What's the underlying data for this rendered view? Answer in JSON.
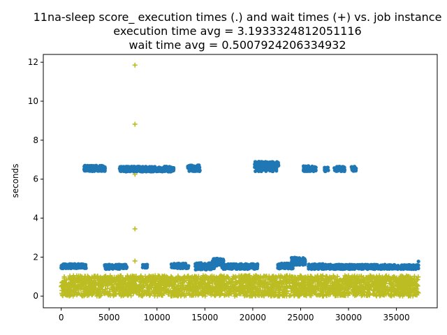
{
  "chart_data": {
    "type": "scatter",
    "title_lines": [
      "11na-sleep score_ execution times (.) and wait times (+) vs. job instance",
      "execution time avg = 3.1933324812051116",
      "wait time avg = 0.5007924206334932"
    ],
    "xlabel": "",
    "ylabel": "seconds",
    "xlim": [
      -1870,
      39260
    ],
    "ylim": [
      -0.6,
      12.4
    ],
    "x_ticks": [
      0,
      5000,
      10000,
      15000,
      20000,
      25000,
      30000,
      35000
    ],
    "y_ticks": [
      0,
      2,
      4,
      6,
      8,
      10,
      12
    ],
    "grid": false,
    "legend": "none",
    "colors": {
      "execution": "#1f77b4",
      "wait": "#bcbd22"
    },
    "series": [
      {
        "marker": "dot",
        "color": "#1f77b4",
        "clusters": [
          {
            "x_range": [
              0,
              2600
            ],
            "y_range": [
              1.42,
              1.65
            ]
          },
          {
            "x_range": [
              2400,
              4600
            ],
            "y_range": [
              6.4,
              6.7
            ]
          },
          {
            "x_range": [
              4500,
              6100
            ],
            "y_range": [
              1.38,
              1.62
            ]
          },
          {
            "x_range": [
              5900,
              6900
            ],
            "y_range": [
              1.42,
              1.62
            ]
          },
          {
            "x_range": [
              6100,
              11800
            ],
            "y_range": [
              6.38,
              6.65
            ]
          },
          {
            "x_range": [
              8500,
              9000
            ],
            "y_range": [
              1.45,
              1.62
            ]
          },
          {
            "x_range": [
              11500,
              13300
            ],
            "y_range": [
              1.42,
              1.68
            ]
          },
          {
            "x_range": [
              13200,
              14500
            ],
            "y_range": [
              6.4,
              6.72
            ]
          },
          {
            "x_range": [
              14000,
              16000
            ],
            "y_range": [
              1.35,
              1.7
            ]
          },
          {
            "x_range": [
              15800,
              17000
            ],
            "y_range": [
              1.55,
              1.95
            ]
          },
          {
            "x_range": [
              16800,
              20500
            ],
            "y_range": [
              1.38,
              1.65
            ]
          },
          {
            "x_range": [
              20200,
              22700
            ],
            "y_range": [
              6.4,
              6.9
            ]
          },
          {
            "x_range": [
              22600,
              24200
            ],
            "y_range": [
              1.4,
              1.68
            ]
          },
          {
            "x_range": [
              24000,
              25500
            ],
            "y_range": [
              1.6,
              1.98
            ]
          },
          {
            "x_range": [
              25300,
              26600
            ],
            "y_range": [
              6.4,
              6.68
            ]
          },
          {
            "x_range": [
              25800,
              27400
            ],
            "y_range": [
              1.38,
              1.65
            ]
          },
          {
            "x_range": [
              27500,
              27900
            ],
            "y_range": [
              6.4,
              6.6
            ]
          },
          {
            "x_range": [
              28500,
              29600
            ],
            "y_range": [
              6.4,
              6.65
            ]
          },
          {
            "x_range": [
              27400,
              30800
            ],
            "y_range": [
              1.38,
              1.62
            ]
          },
          {
            "x_range": [
              30300,
              30800
            ],
            "y_range": [
              6.4,
              6.65
            ]
          },
          {
            "x_range": [
              30800,
              37300
            ],
            "y_range": [
              1.38,
              1.62
            ]
          }
        ],
        "points": [
          {
            "x": 37300,
            "y": 1.78
          }
        ]
      },
      {
        "marker": "plus",
        "color": "#bcbd22",
        "band": {
          "x_range": [
            0,
            37300
          ],
          "y_range": [
            0.0,
            1.05
          ]
        },
        "points": [
          {
            "x": 7700,
            "y": 11.85
          },
          {
            "x": 7700,
            "y": 8.82
          },
          {
            "x": 7700,
            "y": 6.25
          },
          {
            "x": 7700,
            "y": 3.45
          },
          {
            "x": 7700,
            "y": 1.8
          }
        ]
      }
    ]
  }
}
